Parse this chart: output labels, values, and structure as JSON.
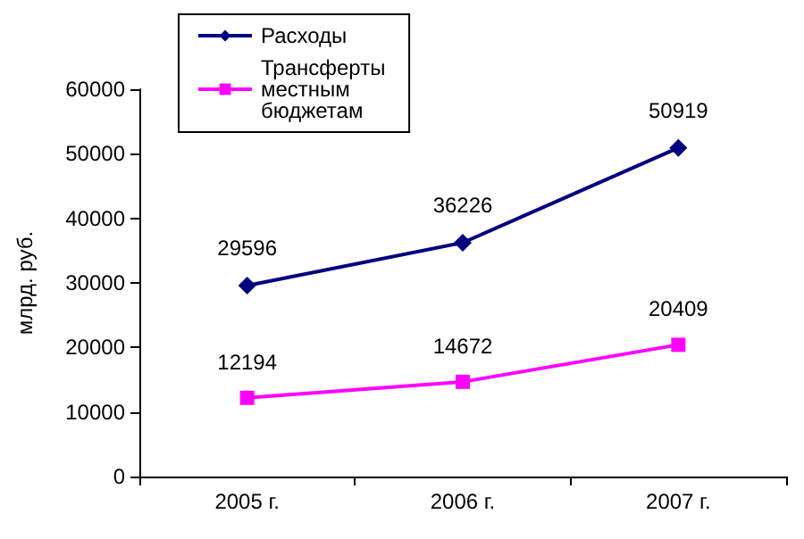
{
  "chart_data": {
    "type": "line",
    "ylabel": "млрд. руб.",
    "categories": [
      "2005 г.",
      "2006 г.",
      "2007 г."
    ],
    "series": [
      {
        "name": "Расходы",
        "color": "#000080",
        "values": [
          29596,
          36226,
          50919
        ],
        "marker": "diamond"
      },
      {
        "name": "Трансферты местным бюджетам",
        "color": "#ff00ff",
        "values": [
          12194,
          14672,
          20409
        ],
        "marker": "square"
      }
    ],
    "ylim": [
      0,
      60000
    ],
    "yticks": [
      0,
      10000,
      20000,
      30000,
      40000,
      50000,
      60000
    ],
    "grid": false,
    "legend": "top left",
    "data_labels": true
  }
}
